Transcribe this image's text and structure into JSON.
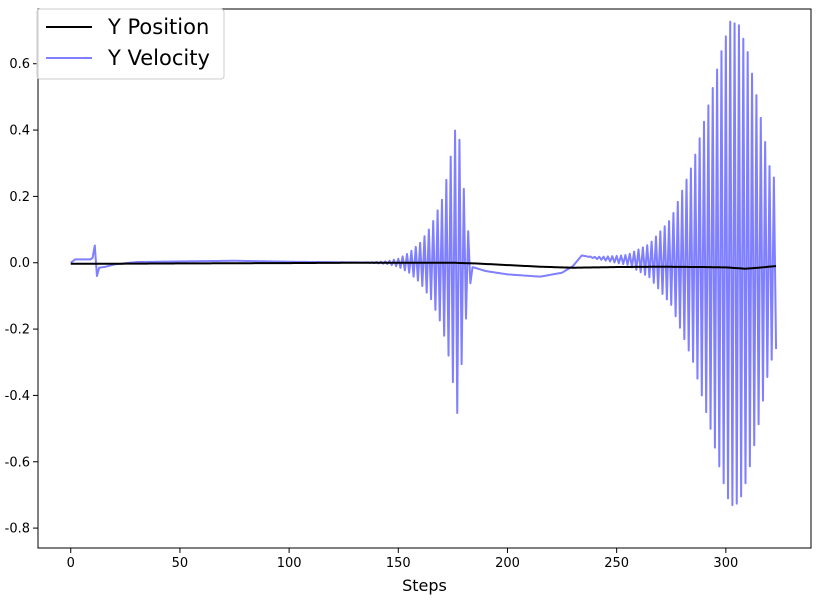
{
  "chart_data": {
    "type": "line",
    "title": "",
    "xlabel": "Steps",
    "ylabel": "",
    "xlim": [
      -15,
      339
    ],
    "ylim": [
      -0.86,
      0.765
    ],
    "xticks": [
      0,
      50,
      100,
      150,
      200,
      250,
      300
    ],
    "xtick_labels": [
      "0",
      "50",
      "100",
      "150",
      "200",
      "250",
      "300"
    ],
    "yticks": [
      -0.8,
      -0.6,
      -0.4,
      -0.2,
      0.0,
      0.2,
      0.4,
      0.6
    ],
    "ytick_labels": [
      "-0.8",
      "-0.6",
      "-0.4",
      "-0.2",
      "0.0",
      "0.2",
      "0.4",
      "0.6"
    ],
    "legend_position": "top-left",
    "series": [
      {
        "name": "Y Position",
        "color": "#000000",
        "opacity": 1.0,
        "points": [
          [
            0,
            -0.003
          ],
          [
            20,
            -0.003
          ],
          [
            50,
            -0.002
          ],
          [
            100,
            -0.001
          ],
          [
            130,
            0.0
          ],
          [
            150,
            0.0
          ],
          [
            175,
            0.0
          ],
          [
            185,
            -0.002
          ],
          [
            200,
            -0.007
          ],
          [
            215,
            -0.012
          ],
          [
            230,
            -0.015
          ],
          [
            250,
            -0.013
          ],
          [
            270,
            -0.012
          ],
          [
            290,
            -0.013
          ],
          [
            300,
            -0.014
          ],
          [
            309,
            -0.018
          ],
          [
            315,
            -0.015
          ],
          [
            323,
            -0.01
          ]
        ]
      },
      {
        "name": "Y Velocity",
        "color": "#0000ff",
        "opacity": 0.5,
        "base": [
          [
            0,
            0.0
          ],
          [
            2,
            0.01
          ],
          [
            6,
            0.01
          ],
          [
            9,
            0.01
          ],
          [
            10,
            0.015
          ],
          [
            11,
            0.052
          ],
          [
            12,
            -0.04
          ],
          [
            13,
            -0.015
          ],
          [
            16,
            -0.012
          ],
          [
            20,
            -0.005
          ],
          [
            30,
            0.002
          ],
          [
            50,
            0.004
          ],
          [
            75,
            0.006
          ],
          [
            100,
            0.003
          ],
          [
            130,
            0.001
          ],
          [
            150,
            0.0
          ],
          [
            175,
            0.0
          ],
          [
            182,
            -0.01
          ],
          [
            185,
            -0.015
          ],
          [
            190,
            -0.025
          ],
          [
            200,
            -0.035
          ],
          [
            215,
            -0.042
          ],
          [
            225,
            -0.03
          ],
          [
            230,
            -0.01
          ],
          [
            234,
            0.022
          ],
          [
            240,
            0.015
          ],
          [
            250,
            0.01
          ],
          [
            262,
            0.007
          ],
          [
            275,
            0.003
          ],
          [
            290,
            0.0
          ],
          [
            310,
            -0.005
          ],
          [
            323,
            -0.01
          ]
        ],
        "oscillation_bursts": [
          {
            "start": 135,
            "end": 184,
            "period": 2,
            "envelope": [
              [
                135,
                0.0
              ],
              [
                145,
                0.004
              ],
              [
                150,
                0.012
              ],
              [
                155,
                0.03
              ],
              [
                160,
                0.06
              ],
              [
                165,
                0.11
              ],
              [
                170,
                0.19
              ],
              [
                173,
                0.28
              ],
              [
                176,
                0.4
              ],
              [
                177,
                0.45
              ],
              [
                179,
                0.3
              ],
              [
                181,
                0.16
              ],
              [
                183,
                0.05
              ],
              [
                184,
                0.0
              ]
            ]
          },
          {
            "start": 236,
            "end": 323,
            "period": 2,
            "envelope": [
              [
                236,
                0.0
              ],
              [
                245,
                0.006
              ],
              [
                255,
                0.015
              ],
              [
                265,
                0.05
              ],
              [
                275,
                0.13
              ],
              [
                285,
                0.3
              ],
              [
                293,
                0.5
              ],
              [
                298,
                0.64
              ],
              [
                302,
                0.73
              ],
              [
                306,
                0.72
              ],
              [
                310,
                0.64
              ],
              [
                315,
                0.48
              ],
              [
                320,
                0.3
              ],
              [
                323,
                0.25
              ]
            ]
          }
        ]
      }
    ]
  }
}
